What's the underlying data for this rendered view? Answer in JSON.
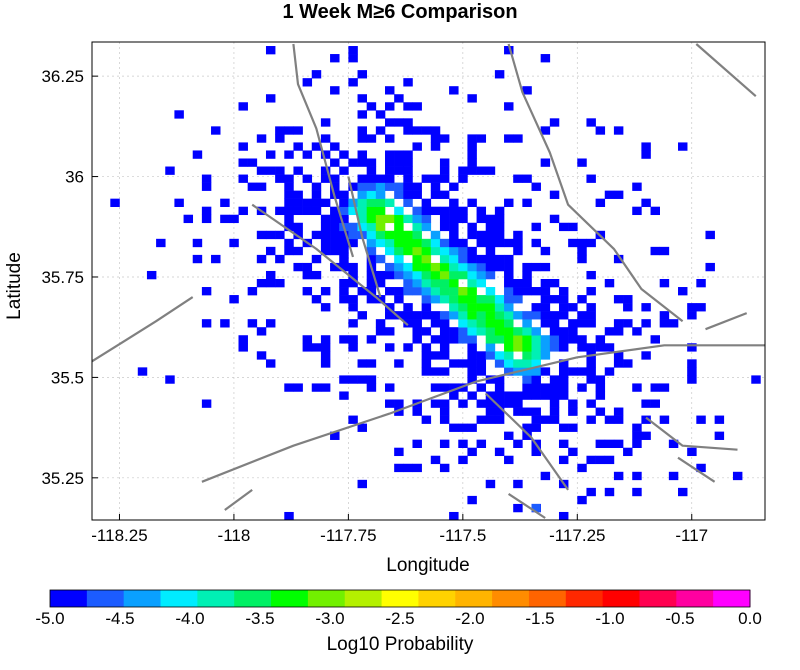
{
  "chart_data": {
    "type": "heatmap",
    "title": "1 Week M≥6 Comparison",
    "xlabel": "Longitude",
    "ylabel": "Latitude",
    "xlim": [
      -118.31,
      -116.84
    ],
    "ylim": [
      35.145,
      36.335
    ],
    "x_ticks": [
      -118.25,
      -118,
      -117.75,
      -117.5,
      -117.25,
      -117
    ],
    "x_tick_labels": [
      "-118.25",
      "-118",
      "-117.75",
      "-117.5",
      "-117.25",
      "-117"
    ],
    "y_ticks": [
      35.25,
      35.5,
      35.75,
      36,
      36.25
    ],
    "y_tick_labels": [
      "35.25",
      "35.5",
      "35.75",
      "36",
      "36.25"
    ],
    "grid": true,
    "cell_size_deg": 0.02,
    "colorbar": {
      "label": "Log10 Probability",
      "min": -5.0,
      "max": 0.0,
      "tick_values": [
        -5.0,
        -4.5,
        -4.0,
        -3.5,
        -3.0,
        -2.5,
        -2.0,
        -1.5,
        -1.0,
        -0.5,
        0.0
      ],
      "tick_labels": [
        "-5.0",
        "-4.5",
        "-4.0",
        "-3.5",
        "-3.0",
        "-2.5",
        "-2.0",
        "-1.5",
        "-1.0",
        "-0.5",
        "0.0"
      ],
      "colors": [
        "#0000ff",
        "#1c5cff",
        "#0aa0ff",
        "#00ecff",
        "#00f0b4",
        "#00f064",
        "#00ff00",
        "#72f000",
        "#b4f000",
        "#ffff00",
        "#ffd200",
        "#ffb400",
        "#ff8c00",
        "#ff6400",
        "#ff2800",
        "#ff0000",
        "#ff0050",
        "#ff00a0",
        "#ff00ff"
      ]
    },
    "cluster": {
      "core_line": {
        "from": [
          -117.69,
          35.91
        ],
        "to": [
          -117.37,
          35.57
        ]
      },
      "peak_log10_probability": -3.2,
      "background_log10_probability": -5.0,
      "outliers": [
        {
          "lon": -117.34,
          "lat": 35.175,
          "log10_probability": -4.6
        }
      ]
    },
    "fault_lines": [
      [
        [
          -118.31,
          35.54
        ],
        [
          -118.17,
          35.64
        ],
        [
          -118.09,
          35.7
        ]
      ],
      [
        [
          -117.87,
          36.33
        ],
        [
          -117.86,
          36.23
        ],
        [
          -117.82,
          36.12
        ],
        [
          -117.78,
          35.95
        ],
        [
          -117.74,
          35.8
        ]
      ],
      [
        [
          -117.96,
          35.93
        ],
        [
          -117.82,
          35.82
        ],
        [
          -117.69,
          35.7
        ],
        [
          -117.62,
          35.63
        ]
      ],
      [
        [
          -118.07,
          35.24
        ],
        [
          -117.87,
          35.33
        ],
        [
          -117.66,
          35.41
        ],
        [
          -117.47,
          35.49
        ],
        [
          -117.25,
          35.55
        ],
        [
          -117.06,
          35.58
        ],
        [
          -116.84,
          35.58
        ]
      ],
      [
        [
          -117.4,
          36.33
        ],
        [
          -117.37,
          36.21
        ],
        [
          -117.31,
          36.06
        ],
        [
          -117.27,
          35.93
        ],
        [
          -117.17,
          35.82
        ],
        [
          -117.11,
          35.72
        ],
        [
          -117.02,
          35.64
        ]
      ],
      [
        [
          -117.75,
          36.0
        ],
        [
          -117.72,
          35.85
        ],
        [
          -117.68,
          35.7
        ]
      ],
      [
        [
          -117.4,
          35.21
        ],
        [
          -117.32,
          35.15
        ]
      ],
      [
        [
          -117.45,
          35.46
        ],
        [
          -117.35,
          35.35
        ],
        [
          -117.27,
          35.22
        ]
      ],
      [
        [
          -117.1,
          35.4
        ],
        [
          -117.02,
          35.33
        ],
        [
          -116.9,
          35.32
        ]
      ],
      [
        [
          -116.97,
          35.62
        ],
        [
          -116.88,
          35.66
        ]
      ],
      [
        [
          -117.03,
          35.3
        ],
        [
          -116.95,
          35.24
        ]
      ],
      [
        [
          -118.02,
          35.17
        ],
        [
          -117.96,
          35.22
        ]
      ],
      [
        [
          -116.99,
          36.33
        ],
        [
          -116.86,
          36.2
        ]
      ]
    ]
  }
}
